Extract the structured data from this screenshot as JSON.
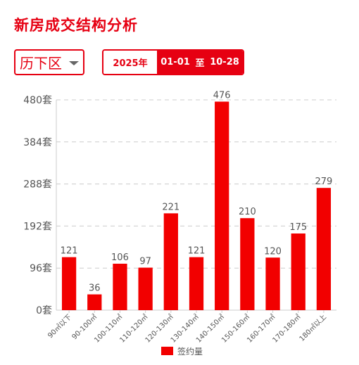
{
  "page": {
    "title": "新房成交结构分析",
    "district": "历下区",
    "date_range": {
      "year": "2025年",
      "start": "01-01",
      "separator": "至",
      "end": "10-28"
    }
  },
  "colors": {
    "accent": "#e60012",
    "bar": "#f20000",
    "text": "#555555",
    "grid": "#cccccc"
  },
  "chart_data": {
    "type": "bar",
    "categories": [
      "90㎡以下",
      "90-100㎡",
      "100-110㎡",
      "110-120㎡",
      "120-130㎡",
      "130-140㎡",
      "140-150㎡",
      "150-160㎡",
      "160-170㎡",
      "170-180㎡",
      "180㎡以上"
    ],
    "series": [
      {
        "name": "签约量",
        "values": [
          121,
          36,
          106,
          97,
          221,
          121,
          476,
          210,
          120,
          175,
          279
        ]
      }
    ],
    "ylim": [
      0,
      480
    ],
    "y_ticks": [
      {
        "value": 0,
        "label": "0套"
      },
      {
        "value": 96,
        "label": "96套"
      },
      {
        "value": 192,
        "label": "192套"
      },
      {
        "value": 288,
        "label": "288套"
      },
      {
        "value": 384,
        "label": "384套"
      },
      {
        "value": 480,
        "label": "480套"
      }
    ],
    "grid": true,
    "legend": "bottom-center",
    "data_labels": true
  }
}
